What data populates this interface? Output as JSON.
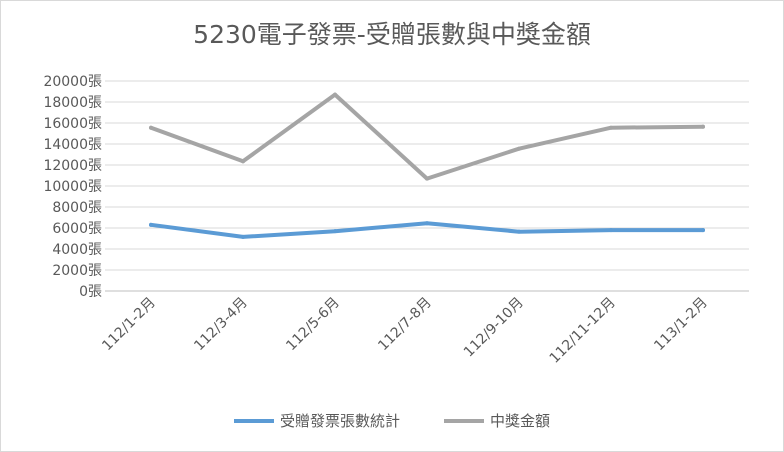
{
  "chart_data": {
    "type": "line",
    "title": "5230電子發票-受贈張數與中獎金額",
    "categories": [
      "112/1-2月",
      "112/3-4月",
      "112/5-6月",
      "112/7-8月",
      "112/9-10月",
      "112/11-12月",
      "113/1-2月"
    ],
    "y_tick_labels": [
      "0張",
      "2000張",
      "4000張",
      "6000張",
      "8000張",
      "10000張",
      "12000張",
      "14000張",
      "16000張",
      "18000張",
      "20000張"
    ],
    "ylim": [
      0,
      20000
    ],
    "grid": true,
    "legend_position": "bottom",
    "series": [
      {
        "name": "受贈發票張數統計",
        "color": "#5b9bd5",
        "values": [
          6300,
          5150,
          5700,
          6450,
          5650,
          5800,
          5800
        ]
      },
      {
        "name": "中獎金額",
        "color": "#a5a5a5",
        "values": [
          15550,
          12350,
          18700,
          10700,
          13550,
          15550,
          15650
        ]
      }
    ]
  }
}
